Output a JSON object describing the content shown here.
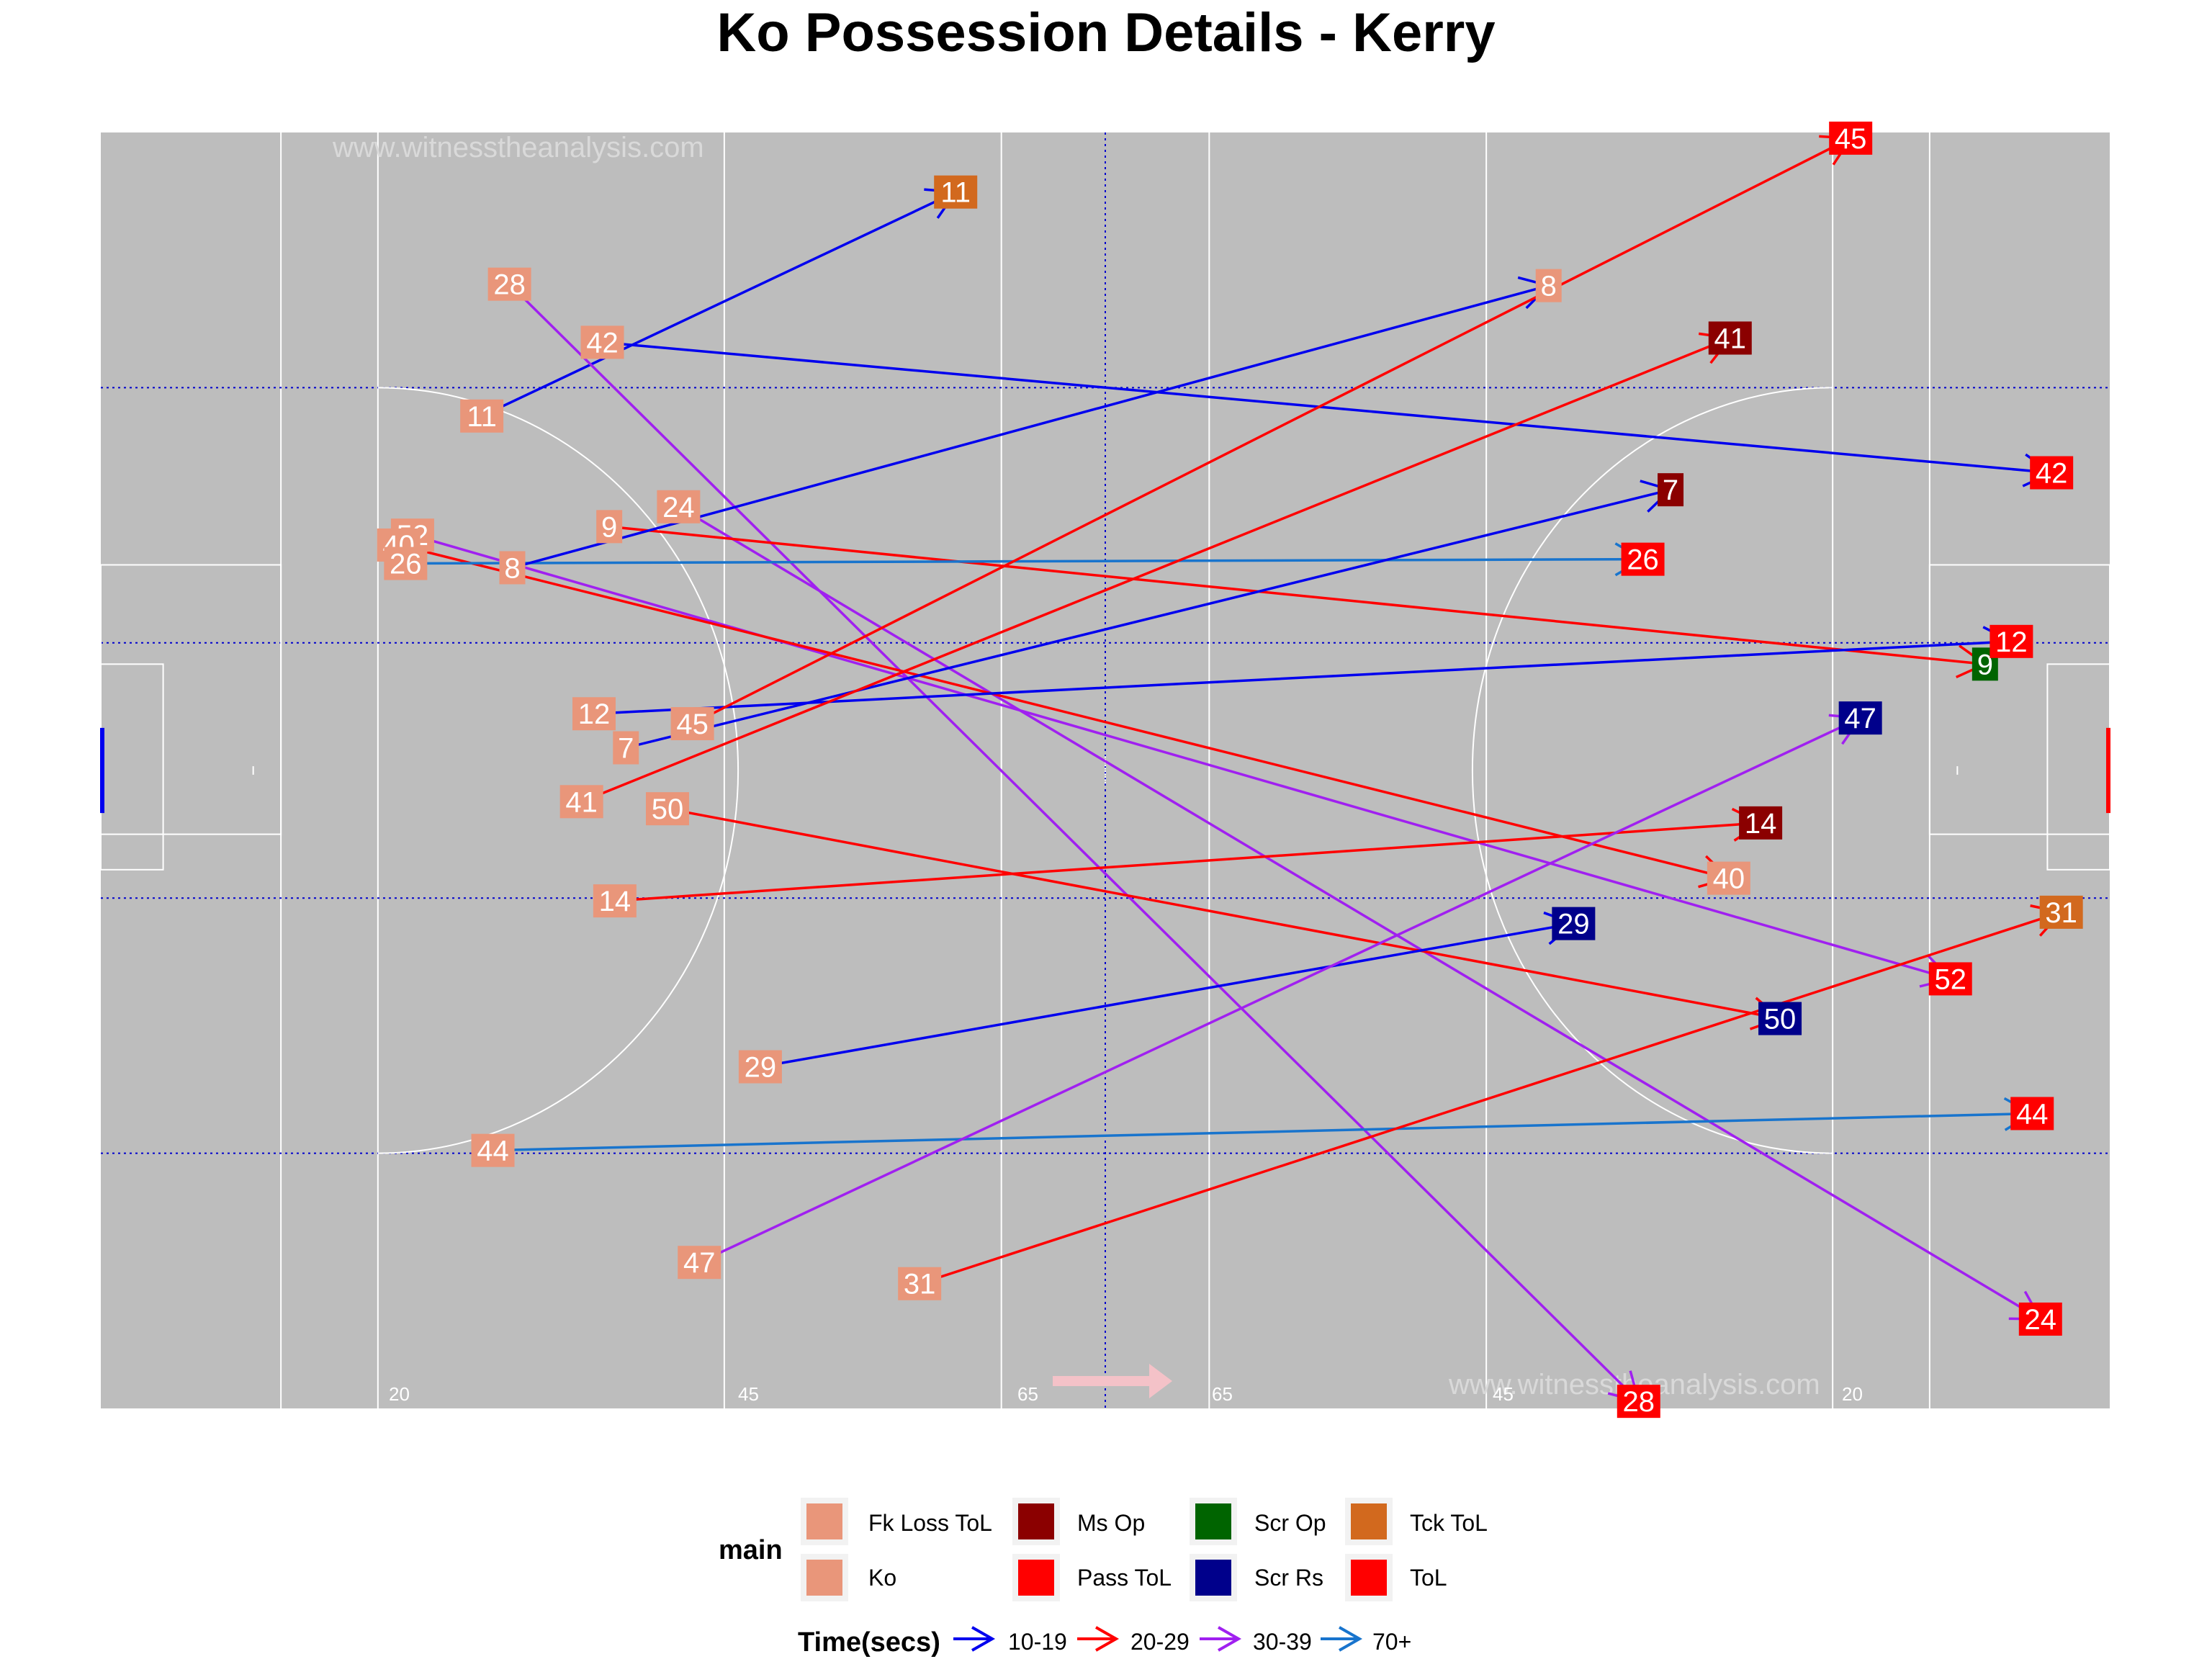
{
  "title": "Ko Possession Details - Kerry",
  "watermarks": [
    "www.witnesstheanalysis.com",
    "www.witnesstheanalysis.com"
  ],
  "pitch_labels": [
    "20",
    "45",
    "65",
    "65",
    "45",
    "20"
  ],
  "legend": {
    "main_title": "main",
    "main_items": [
      {
        "label": "Fk Loss ToL",
        "color": "#E9967A"
      },
      {
        "label": "Ko",
        "color": "#E9967A"
      },
      {
        "label": "Ms Op",
        "color": "#8B0000"
      },
      {
        "label": "Pass ToL",
        "color": "#FF0000"
      },
      {
        "label": "Scr Op",
        "color": "#006400"
      },
      {
        "label": "Scr Rs",
        "color": "#00008B"
      },
      {
        "label": "Tck ToL",
        "color": "#D2691E"
      },
      {
        "label": "ToL",
        "color": "#FF0000"
      }
    ],
    "time_title": "Time(secs)",
    "time_items": [
      {
        "label": "10-19",
        "color": "#0000EE"
      },
      {
        "label": "20-29",
        "color": "#FF0000"
      },
      {
        "label": "30-39",
        "color": "#A020F0"
      },
      {
        "label": "70+",
        "color": "#1874CD"
      }
    ]
  },
  "chart_data": {
    "type": "pitch-arrows",
    "title": "Ko Possession Details - Kerry",
    "pitch": {
      "length": 145,
      "width": 90,
      "background": "#bdbdbd",
      "line_color": "#ffffff",
      "grid_color": "#0000CD"
    },
    "colors": {
      "Fk Loss ToL": "#E9967A",
      "Ko": "#E9967A",
      "Ms Op": "#8B0000",
      "Pass ToL": "#FF0000",
      "Scr Op": "#006400",
      "Scr Rs": "#00008B",
      "Tck ToL": "#D2691E",
      "ToL": "#FF0000",
      "10-19": "#0000EE",
      "20-29": "#FF0000",
      "30-39": "#A020F0",
      "70+": "#1874CD"
    },
    "possessions": [
      {
        "id": "11",
        "start": [
          27.5,
          70.0
        ],
        "end": [
          61.7,
          85.8
        ],
        "time": "10-19",
        "outcome": "Tck ToL"
      },
      {
        "id": "28",
        "start": [
          29.5,
          79.3
        ],
        "end": [
          111.0,
          0.5
        ],
        "time": "30-39",
        "outcome": "ToL"
      },
      {
        "id": "42",
        "start": [
          36.2,
          75.2
        ],
        "end": [
          140.8,
          66.0
        ],
        "time": "10-19",
        "outcome": "ToL"
      },
      {
        "id": "24",
        "start": [
          41.7,
          63.6
        ],
        "end": [
          140.0,
          6.3
        ],
        "time": "30-39",
        "outcome": "ToL"
      },
      {
        "id": "9",
        "start": [
          36.7,
          62.2
        ],
        "end": [
          136.0,
          52.5
        ],
        "time": "20-29",
        "outcome": "Scr Op"
      },
      {
        "id": "52",
        "start": [
          22.5,
          61.6
        ],
        "end": [
          133.5,
          30.3
        ],
        "time": "30-39",
        "outcome": "ToL"
      },
      {
        "id": "40",
        "start": [
          21.5,
          60.9
        ],
        "end": [
          117.5,
          37.4
        ],
        "time": "20-29",
        "outcome": "Fk Loss ToL"
      },
      {
        "id": "26",
        "start": [
          22.0,
          59.6
        ],
        "end": [
          111.3,
          59.9
        ],
        "time": "70+",
        "outcome": "ToL"
      },
      {
        "id": "8",
        "start": [
          29.7,
          59.3
        ],
        "end": [
          104.5,
          79.2
        ],
        "time": "10-19",
        "outcome": "Fk Loss ToL"
      },
      {
        "id": "12",
        "start": [
          35.6,
          49.0
        ],
        "end": [
          137.9,
          54.1
        ],
        "time": "10-19",
        "outcome": "ToL"
      },
      {
        "id": "45",
        "start": [
          42.7,
          48.3
        ],
        "end": [
          126.3,
          89.6
        ],
        "time": "20-29",
        "outcome": "ToL"
      },
      {
        "id": "7",
        "start": [
          37.9,
          46.6
        ],
        "end": [
          113.3,
          64.8
        ],
        "time": "10-19",
        "outcome": "Ms Op"
      },
      {
        "id": "41",
        "start": [
          34.7,
          42.8
        ],
        "end": [
          117.6,
          75.5
        ],
        "time": "20-29",
        "outcome": "Ms Op"
      },
      {
        "id": "50",
        "start": [
          40.9,
          42.3
        ],
        "end": [
          121.2,
          27.5
        ],
        "time": "20-29",
        "outcome": "Scr Rs"
      },
      {
        "id": "14",
        "start": [
          37.1,
          35.8
        ],
        "end": [
          119.8,
          41.3
        ],
        "time": "20-29",
        "outcome": "Ms Op"
      },
      {
        "id": "29",
        "start": [
          47.6,
          24.1
        ],
        "end": [
          106.3,
          34.2
        ],
        "time": "10-19",
        "outcome": "Scr Rs"
      },
      {
        "id": "44",
        "start": [
          28.3,
          18.2
        ],
        "end": [
          139.4,
          20.8
        ],
        "time": "70+",
        "outcome": "ToL"
      },
      {
        "id": "47",
        "start": [
          43.2,
          10.3
        ],
        "end": [
          127.0,
          48.7
        ],
        "time": "30-39",
        "outcome": "Scr Rs"
      },
      {
        "id": "31",
        "start": [
          59.1,
          8.8
        ],
        "end": [
          141.5,
          35.0
        ],
        "time": "20-29",
        "outcome": "Tck ToL"
      }
    ]
  }
}
